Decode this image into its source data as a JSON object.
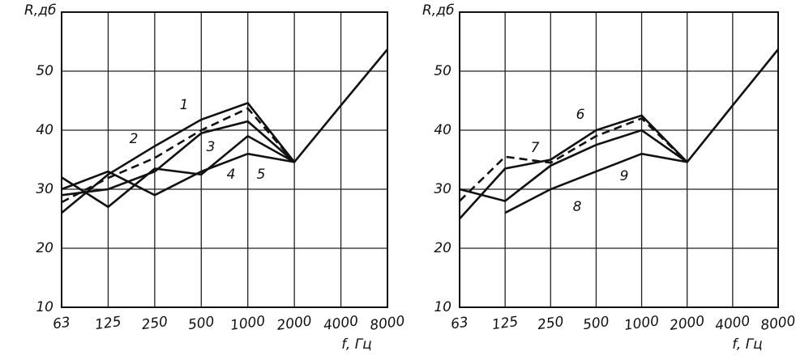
{
  "chart_data": [
    {
      "type": "line",
      "y_label": "R,дб",
      "x_label": "f, Гц",
      "categories": [
        "63",
        "125",
        "250",
        "500",
        "1000",
        "2000",
        "4000",
        "8000"
      ],
      "ylim": [
        10,
        60
      ],
      "yticks": [
        10,
        20,
        30,
        40,
        50
      ],
      "grid": true,
      "series": [
        {
          "name": "1",
          "color": "#111111",
          "style": "solid",
          "values": [
            26,
            32.5,
            37.3,
            41.8,
            44.6,
            34.6,
            44.2,
            53.7
          ]
        },
        {
          "name": "2",
          "color": "#111111",
          "style": "dashed",
          "values": [
            27.8,
            31.9,
            35.3,
            40,
            43.7,
            34.6,
            null,
            null
          ]
        },
        {
          "name": "3",
          "color": "#111111",
          "style": "solid",
          "values": [
            29,
            30,
            33,
            39.5,
            41.5,
            34.6,
            null,
            null
          ]
        },
        {
          "name": "4",
          "color": "#111111",
          "style": "solid",
          "values": [
            32,
            27,
            33.5,
            32.5,
            39,
            34.6,
            null,
            null
          ]
        },
        {
          "name": "5",
          "color": "#111111",
          "style": "solid",
          "values": [
            30,
            33,
            29,
            33,
            36,
            34.6,
            null,
            null
          ]
        }
      ]
    },
    {
      "type": "line",
      "y_label": "R,дб",
      "x_label": "f, Гц",
      "categories": [
        "63",
        "125",
        "250",
        "500",
        "1000",
        "2000",
        "4000",
        "8000"
      ],
      "ylim": [
        10,
        60
      ],
      "yticks": [
        10,
        20,
        30,
        40,
        50
      ],
      "grid": true,
      "series": [
        {
          "name": "6",
          "color": "#111111",
          "style": "solid",
          "values": [
            25,
            33.5,
            35,
            40,
            42.5,
            34.6,
            44.2,
            53.7
          ]
        },
        {
          "name": "7",
          "color": "#111111",
          "style": "dashed",
          "values": [
            28,
            35.5,
            34.5,
            39,
            42,
            34.6,
            null,
            null
          ]
        },
        {
          "name": "8",
          "color": "#111111",
          "style": "solid",
          "values": [
            30,
            28,
            34,
            37.5,
            40,
            34.6,
            null,
            null
          ]
        },
        {
          "name": "9",
          "color": "#111111",
          "style": "solid",
          "values": [
            null,
            26,
            30,
            33,
            36,
            34.6,
            null,
            null
          ]
        }
      ]
    }
  ]
}
